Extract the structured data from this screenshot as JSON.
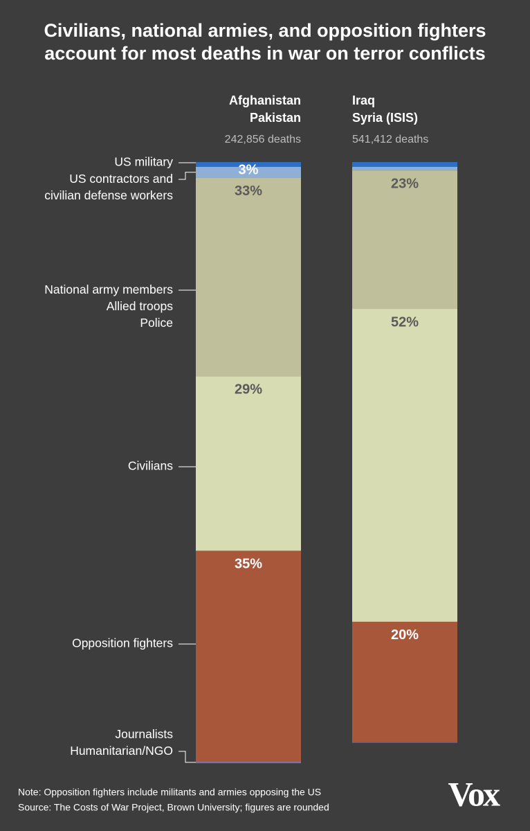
{
  "chart_data": {
    "type": "stacked_bar",
    "title": "Civilians, national armies, and opposition fighters\naccount for most deaths in war on terror conflicts",
    "categories": [
      "Afghanistan\nPakistan",
      "Iraq\nSyria (ISIS)"
    ],
    "category_totals": [
      "242,856 deaths",
      "541,412 deaths"
    ],
    "ylim": [
      0,
      100
    ],
    "series": [
      {
        "name": "US military",
        "color": "#2f6fc1",
        "values": [
          0.8,
          0.8
        ],
        "value_labels": [
          null,
          null
        ],
        "label_color": "#ffffff"
      },
      {
        "name": "US contractors and\ncivilian defense workers",
        "color": "#8eb0d7",
        "values": [
          1.8,
          0.6
        ],
        "value_labels": [
          null,
          null
        ],
        "label_color": "#ffffff"
      },
      {
        "name": "National army members\nAllied troops\nPolice",
        "color": "#bfbf9b",
        "values": [
          33,
          23
        ],
        "value_labels": [
          "33%",
          "23%"
        ],
        "label_color": "#5a5a5a"
      },
      {
        "name": "Civilians",
        "color": "#d8dcb3",
        "values": [
          29,
          52
        ],
        "value_labels": [
          "29%",
          "52%"
        ],
        "label_color": "#5a5a5a"
      },
      {
        "name": "Opposition fighters",
        "color": "#a8573b",
        "values": [
          35,
          20
        ],
        "value_labels": [
          "35%",
          "20%"
        ],
        "label_color": "#ffffff"
      },
      {
        "name": "Journalists\nHumanitarian/NGO",
        "color": "#7b70a8",
        "values": [
          0.3,
          0.1
        ],
        "value_labels": [
          null,
          null
        ],
        "label_color": "#ffffff"
      }
    ],
    "annotations": [
      {
        "text": "3%",
        "category": 0,
        "series": [
          0,
          1
        ]
      }
    ],
    "note": "Note: Opposition fighters include militants and armies opposing the US",
    "source": "Source: The Costs of War Project, Brown University; figures are rounded",
    "logo": "Vox"
  }
}
